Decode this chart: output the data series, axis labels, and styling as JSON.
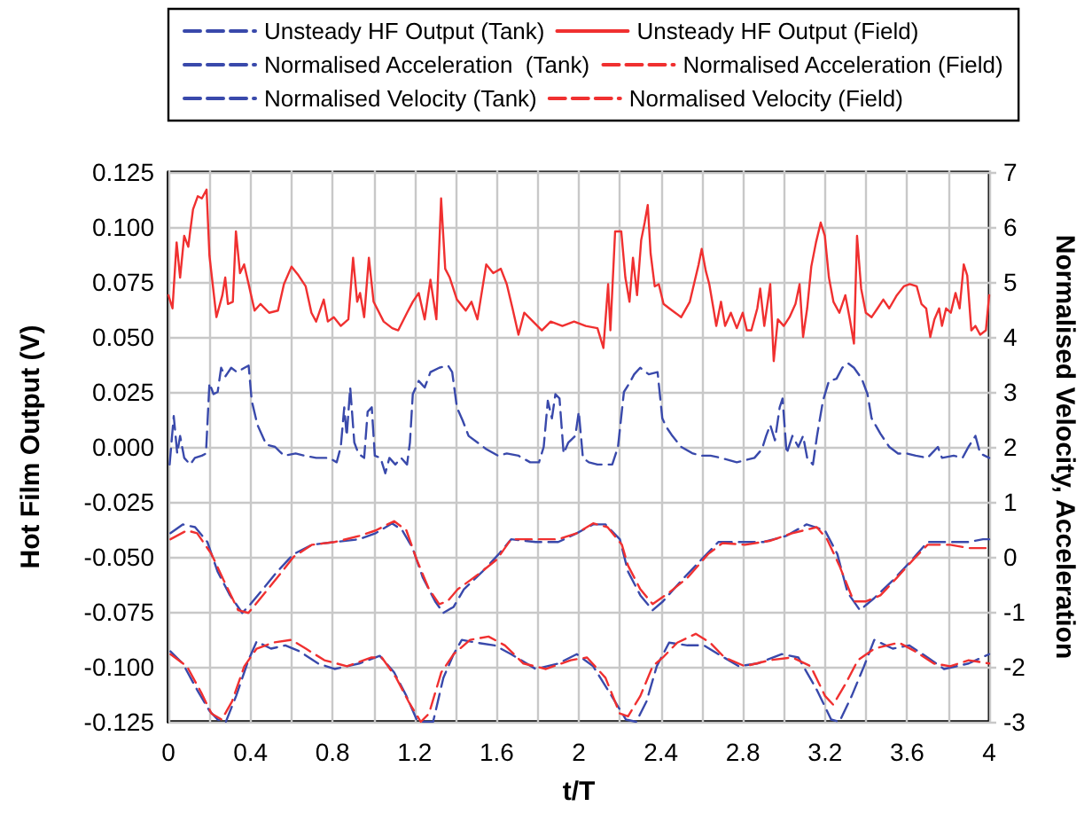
{
  "chart_data": {
    "type": "line",
    "xlabel": "t/T",
    "ylabel": "Hot Film Output (V)",
    "y2label": "Normalised Velocity, Acceleration",
    "xlim": [
      0,
      4
    ],
    "xticks": [
      0,
      {
        "value": 0.2,
        "label": null
      },
      0.4,
      {
        "value": 0.6,
        "label": null
      },
      0.8,
      {
        "value": 1.0,
        "label": null
      },
      1.2,
      {
        "value": 1.4,
        "label": null
      },
      1.6,
      {
        "value": 1.8,
        "label": null
      },
      2,
      {
        "value": 2.2,
        "label": null
      },
      2.4,
      {
        "value": 2.6,
        "label": null
      },
      2.8,
      {
        "value": 3.0,
        "label": null
      },
      3.2,
      {
        "value": 3.4,
        "label": null
      },
      3.6,
      {
        "value": 3.8,
        "label": null
      },
      4
    ],
    "ylim": [
      -0.125,
      0.125
    ],
    "yticks": [
      {
        "value": -0.125,
        "label": "-0.125"
      },
      {
        "value": -0.1,
        "label": "-0.100"
      },
      {
        "value": -0.075,
        "label": "-0.075"
      },
      {
        "value": -0.05,
        "label": "-0.050"
      },
      {
        "value": -0.025,
        "label": "-0.025"
      },
      {
        "value": 0,
        "label": "0.000"
      },
      {
        "value": 0.025,
        "label": "0.025"
      },
      {
        "value": 0.05,
        "label": "0.050"
      },
      {
        "value": 0.075,
        "label": "0.075"
      },
      {
        "value": 0.1,
        "label": "0.100"
      },
      {
        "value": 0.125,
        "label": "0.125"
      }
    ],
    "y2lim": [
      -3,
      7
    ],
    "y2ticks": [
      -3,
      -2,
      -1,
      0,
      1,
      2,
      3,
      4,
      5,
      6,
      7
    ],
    "grid": true,
    "legend": "top",
    "marker": "none",
    "series": [
      {
        "name": "Unsteady HF Output (Tank)",
        "color": "#3949ab",
        "line_style": "dashed",
        "x": [
          0.006,
          0.026,
          0.043,
          0.057,
          0.077,
          0.106,
          0.129,
          0.163,
          0.183,
          0.2,
          0.22,
          0.24,
          0.257,
          0.277,
          0.306,
          0.334,
          0.371,
          0.391,
          0.406,
          0.434,
          0.477,
          0.52,
          0.563,
          0.62,
          0.663,
          0.72,
          0.783,
          0.82,
          0.84,
          0.857,
          0.869,
          0.886,
          0.906,
          0.926,
          0.954,
          0.971,
          0.991,
          1.006,
          1.034,
          1.057,
          1.077,
          1.106,
          1.134,
          1.163,
          1.177,
          1.191,
          1.22,
          1.249,
          1.277,
          1.32,
          1.363,
          1.383,
          1.406,
          1.434,
          1.463,
          1.506,
          1.549,
          1.606,
          1.649,
          1.706,
          1.763,
          1.806,
          1.829,
          1.849,
          1.869,
          1.886,
          1.906,
          1.926,
          1.949,
          1.983,
          2.0,
          2.02,
          2.049,
          2.091,
          2.134,
          2.163,
          2.191,
          2.22,
          2.247,
          2.27,
          2.299,
          2.341,
          2.384,
          2.407,
          2.427,
          2.456,
          2.499,
          2.556,
          2.599,
          2.642,
          2.693,
          2.77,
          2.856,
          2.893,
          2.913,
          2.933,
          2.956,
          2.979,
          2.993,
          3.013,
          3.041,
          3.07,
          3.093,
          3.113,
          3.141,
          3.161,
          3.19,
          3.219,
          3.256,
          3.284,
          3.313,
          3.341,
          3.379,
          3.407,
          3.427,
          3.47,
          3.513,
          3.556,
          3.599,
          3.642,
          3.699,
          3.75,
          3.77,
          3.827,
          3.87,
          3.899,
          3.933,
          3.956,
          4.0
        ],
        "values": [
          -0.008,
          0.014,
          -0.003,
          0.005,
          -0.005,
          -0.008,
          -0.005,
          -0.004,
          -0.003,
          0.029,
          0.024,
          0.025,
          0.036,
          0.032,
          0.036,
          0.034,
          0.036,
          0.037,
          0.021,
          0.01,
          0.001,
          0.0,
          -0.004,
          -0.003,
          -0.004,
          -0.005,
          -0.005,
          -0.007,
          0.0,
          0.018,
          0.005,
          0.027,
          0.002,
          -0.003,
          -0.005,
          0.016,
          0.018,
          -0.004,
          -0.005,
          -0.012,
          -0.005,
          -0.008,
          -0.005,
          -0.008,
          0.002,
          0.024,
          0.03,
          0.027,
          0.034,
          0.036,
          0.037,
          0.034,
          0.018,
          0.012,
          0.005,
          0.002,
          -0.001,
          -0.004,
          -0.003,
          -0.004,
          -0.007,
          -0.007,
          0.0,
          0.021,
          0.013,
          0.024,
          0.022,
          -0.003,
          0.002,
          0.005,
          0.016,
          -0.005,
          -0.007,
          -0.008,
          -0.008,
          -0.008,
          0.0,
          0.025,
          0.029,
          0.033,
          0.036,
          0.033,
          0.034,
          0.013,
          0.009,
          0.005,
          0.0,
          -0.003,
          -0.004,
          -0.004,
          -0.005,
          -0.007,
          -0.005,
          -0.001,
          0.005,
          0.01,
          0.003,
          0.018,
          0.022,
          -0.003,
          0.005,
          0.0,
          0.005,
          -0.005,
          -0.008,
          0.005,
          0.021,
          0.03,
          0.031,
          0.036,
          0.038,
          0.036,
          0.031,
          0.024,
          0.013,
          0.006,
          0.0,
          -0.003,
          -0.003,
          -0.004,
          -0.005,
          0.0,
          -0.005,
          -0.004,
          -0.005,
          0.0,
          0.005,
          -0.003,
          -0.005
        ]
      },
      {
        "name": "Unsteady HF Output (Field)",
        "color": "#f03030",
        "line_style": "solid",
        "x": [
          0,
          0.02,
          0.04,
          0.057,
          0.077,
          0.097,
          0.106,
          0.12,
          0.143,
          0.163,
          0.186,
          0.2,
          0.234,
          0.263,
          0.277,
          0.29,
          0.314,
          0.329,
          0.349,
          0.369,
          0.391,
          0.42,
          0.449,
          0.491,
          0.534,
          0.563,
          0.6,
          0.634,
          0.669,
          0.697,
          0.72,
          0.757,
          0.777,
          0.806,
          0.84,
          0.877,
          0.9,
          0.92,
          0.934,
          0.954,
          0.977,
          1.0,
          1.049,
          1.091,
          1.12,
          1.163,
          1.191,
          1.22,
          1.249,
          1.277,
          1.306,
          1.329,
          1.349,
          1.371,
          1.406,
          1.449,
          1.477,
          1.506,
          1.549,
          1.583,
          1.62,
          1.649,
          1.677,
          1.706,
          1.734,
          1.777,
          1.82,
          1.863,
          1.92,
          1.977,
          2.034,
          2.091,
          2.12,
          2.143,
          2.154,
          2.177,
          2.207,
          2.227,
          2.247,
          2.264,
          2.284,
          2.304,
          2.321,
          2.336,
          2.35,
          2.37,
          2.39,
          2.413,
          2.441,
          2.47,
          2.499,
          2.541,
          2.584,
          2.599,
          2.619,
          2.636,
          2.656,
          2.67,
          2.693,
          2.713,
          2.741,
          2.77,
          2.799,
          2.819,
          2.841,
          2.87,
          2.884,
          2.904,
          2.933,
          2.95,
          2.97,
          2.999,
          3.027,
          3.056,
          3.076,
          3.093,
          3.113,
          3.133,
          3.156,
          3.179,
          3.199,
          3.219,
          3.241,
          3.27,
          3.299,
          3.321,
          3.341,
          3.356,
          3.376,
          3.399,
          3.427,
          3.456,
          3.484,
          3.513,
          3.55,
          3.584,
          3.613,
          3.647,
          3.67,
          3.693,
          3.713,
          3.733,
          3.756,
          3.77,
          3.79,
          3.813,
          3.836,
          3.856,
          3.876,
          3.893,
          3.913,
          3.933,
          3.956,
          3.984,
          4.0
        ],
        "values": [
          0.069,
          0.063,
          0.093,
          0.077,
          0.096,
          0.091,
          0.098,
          0.108,
          0.114,
          0.113,
          0.117,
          0.087,
          0.059,
          0.069,
          0.077,
          0.065,
          0.066,
          0.098,
          0.079,
          0.083,
          0.074,
          0.062,
          0.065,
          0.061,
          0.062,
          0.074,
          0.082,
          0.078,
          0.073,
          0.061,
          0.057,
          0.067,
          0.057,
          0.059,
          0.055,
          0.058,
          0.086,
          0.066,
          0.07,
          0.059,
          0.086,
          0.066,
          0.057,
          0.054,
          0.053,
          0.061,
          0.066,
          0.07,
          0.058,
          0.076,
          0.058,
          0.113,
          0.081,
          0.077,
          0.067,
          0.062,
          0.066,
          0.058,
          0.083,
          0.079,
          0.081,
          0.074,
          0.063,
          0.051,
          0.061,
          0.057,
          0.053,
          0.057,
          0.055,
          0.057,
          0.055,
          0.054,
          0.045,
          0.074,
          0.053,
          0.098,
          0.098,
          0.077,
          0.066,
          0.086,
          0.069,
          0.094,
          0.102,
          0.11,
          0.088,
          0.073,
          0.074,
          0.065,
          0.063,
          0.061,
          0.059,
          0.066,
          0.083,
          0.09,
          0.08,
          0.074,
          0.063,
          0.055,
          0.066,
          0.055,
          0.061,
          0.054,
          0.061,
          0.053,
          0.053,
          0.063,
          0.072,
          0.055,
          0.074,
          0.039,
          0.058,
          0.055,
          0.059,
          0.065,
          0.074,
          0.05,
          0.063,
          0.082,
          0.093,
          0.102,
          0.096,
          0.077,
          0.066,
          0.061,
          0.069,
          0.058,
          0.047,
          0.096,
          0.072,
          0.061,
          0.059,
          0.063,
          0.067,
          0.063,
          0.069,
          0.073,
          0.074,
          0.073,
          0.065,
          0.063,
          0.05,
          0.058,
          0.063,
          0.055,
          0.063,
          0.061,
          0.07,
          0.063,
          0.083,
          0.078,
          0.053,
          0.055,
          0.051,
          0.053,
          0.069
        ]
      },
      {
        "name": "Normalised Acceleration  (Tank)",
        "color": "#3949ab",
        "line_style": "dashed",
        "axis": "y2",
        "x": [
          0.01,
          0.07,
          0.14,
          0.2,
          0.24,
          0.28,
          0.33,
          0.39,
          0.43,
          0.5,
          0.57,
          0.64,
          0.73,
          0.81,
          0.93,
          1.03,
          1.1,
          1.16,
          1.21,
          1.24,
          1.29,
          1.34,
          1.39,
          1.43,
          1.5,
          1.59,
          1.67,
          1.79,
          1.9,
          1.99,
          2.07,
          2.16,
          2.23,
          2.28,
          2.33,
          2.38,
          2.44,
          2.53,
          2.61,
          2.68,
          2.78,
          2.87,
          2.99,
          3.07,
          3.16,
          3.23,
          3.27,
          3.33,
          3.39,
          3.44,
          3.53,
          3.61,
          3.7,
          3.78,
          3.9,
          4.0
        ],
        "values": [
          -1.72,
          -1.94,
          -2.42,
          -2.8,
          -2.96,
          -3.0,
          -2.53,
          -1.88,
          -1.54,
          -1.67,
          -1.61,
          -1.72,
          -1.94,
          -2.04,
          -1.94,
          -1.8,
          -2.1,
          -2.53,
          -2.96,
          -3.0,
          -3.0,
          -2.2,
          -1.77,
          -1.51,
          -1.56,
          -1.61,
          -1.77,
          -2.04,
          -1.94,
          -1.77,
          -1.99,
          -2.53,
          -2.96,
          -3.0,
          -2.63,
          -1.99,
          -1.56,
          -1.61,
          -1.61,
          -1.77,
          -1.99,
          -1.94,
          -1.77,
          -1.83,
          -2.42,
          -2.96,
          -3.0,
          -2.53,
          -1.99,
          -1.51,
          -1.67,
          -1.61,
          -1.83,
          -2.04,
          -1.94,
          -1.77
        ]
      },
      {
        "name": "Normalised Acceleration (Field)",
        "color": "#f03030",
        "line_style": "dashed",
        "axis": "y2",
        "x": [
          0.01,
          0.09,
          0.16,
          0.21,
          0.26,
          0.31,
          0.37,
          0.43,
          0.51,
          0.6,
          0.67,
          0.76,
          0.87,
          0.99,
          1.04,
          1.11,
          1.17,
          1.23,
          1.27,
          1.33,
          1.39,
          1.47,
          1.56,
          1.64,
          1.73,
          1.84,
          1.96,
          2.04,
          2.13,
          2.2,
          2.24,
          2.3,
          2.36,
          2.41,
          2.48,
          2.57,
          2.64,
          2.71,
          2.81,
          2.93,
          3.04,
          3.13,
          3.2,
          3.24,
          3.3,
          3.36,
          3.44,
          3.56,
          3.64,
          3.73,
          3.81,
          3.9,
          4.0
        ],
        "values": [
          -1.77,
          -1.99,
          -2.47,
          -2.85,
          -2.96,
          -2.63,
          -1.99,
          -1.67,
          -1.56,
          -1.51,
          -1.67,
          -1.88,
          -1.99,
          -1.83,
          -1.83,
          -2.2,
          -2.63,
          -3.0,
          -2.85,
          -2.1,
          -1.77,
          -1.51,
          -1.45,
          -1.61,
          -1.94,
          -2.04,
          -1.88,
          -1.83,
          -2.2,
          -2.85,
          -2.9,
          -2.53,
          -1.99,
          -1.83,
          -1.56,
          -1.4,
          -1.56,
          -1.83,
          -1.99,
          -1.88,
          -1.83,
          -1.99,
          -2.53,
          -2.69,
          -2.31,
          -1.88,
          -1.67,
          -1.56,
          -1.72,
          -1.94,
          -1.99,
          -1.88,
          -1.94
        ]
      },
      {
        "name": "Normalised Velocity (Tank)",
        "color": "#3949ab",
        "line_style": "dashed",
        "axis": "y2",
        "x": [
          0.01,
          0.07,
          0.13,
          0.19,
          0.24,
          0.3,
          0.36,
          0.4,
          0.46,
          0.53,
          0.61,
          0.7,
          0.81,
          0.93,
          1.01,
          1.09,
          1.14,
          1.19,
          1.24,
          1.3,
          1.34,
          1.39,
          1.44,
          1.53,
          1.61,
          1.67,
          1.79,
          1.9,
          1.99,
          2.07,
          2.13,
          2.2,
          2.24,
          2.3,
          2.36,
          2.41,
          2.5,
          2.61,
          2.68,
          2.78,
          2.9,
          3.01,
          3.11,
          3.2,
          3.26,
          3.31,
          3.37,
          3.44,
          3.53,
          3.61,
          3.7,
          3.78,
          3.9,
          3.97,
          4.0
        ],
        "values": [
          0.43,
          0.59,
          0.54,
          0.27,
          -0.27,
          -0.7,
          -1.02,
          -0.86,
          -0.59,
          -0.27,
          0.05,
          0.22,
          0.27,
          0.32,
          0.43,
          0.61,
          0.48,
          0.16,
          -0.38,
          -0.81,
          -1.02,
          -0.91,
          -0.59,
          -0.27,
          0.05,
          0.32,
          0.27,
          0.27,
          0.43,
          0.59,
          0.59,
          0.32,
          -0.27,
          -0.7,
          -0.97,
          -0.81,
          -0.43,
          0.0,
          0.27,
          0.27,
          0.27,
          0.38,
          0.59,
          0.48,
          0.05,
          -0.65,
          -0.97,
          -0.75,
          -0.43,
          -0.11,
          0.27,
          0.27,
          0.27,
          0.32,
          0.32
        ]
      },
      {
        "name": "Normalised Velocity (Field)",
        "color": "#f03030",
        "line_style": "dashed",
        "axis": "y2",
        "x": [
          0.01,
          0.09,
          0.14,
          0.21,
          0.27,
          0.34,
          0.39,
          0.46,
          0.53,
          0.61,
          0.7,
          0.81,
          0.93,
          1.01,
          1.1,
          1.16,
          1.21,
          1.27,
          1.32,
          1.36,
          1.41,
          1.51,
          1.6,
          1.67,
          1.79,
          1.9,
          1.99,
          2.07,
          2.14,
          2.21,
          2.24,
          2.3,
          2.36,
          2.44,
          2.53,
          2.63,
          2.7,
          2.81,
          2.93,
          3.04,
          3.16,
          3.21,
          3.27,
          3.34,
          3.4,
          3.47,
          3.55,
          3.63,
          3.7,
          3.81,
          3.9,
          4.0
        ],
        "values": [
          0.32,
          0.48,
          0.43,
          0.05,
          -0.43,
          -0.97,
          -1.02,
          -0.7,
          -0.38,
          0.0,
          0.22,
          0.27,
          0.38,
          0.48,
          0.65,
          0.48,
          -0.05,
          -0.59,
          -0.86,
          -0.81,
          -0.59,
          -0.32,
          -0.05,
          0.32,
          0.32,
          0.32,
          0.43,
          0.61,
          0.54,
          0.22,
          -0.16,
          -0.59,
          -0.86,
          -0.65,
          -0.38,
          0.05,
          0.25,
          0.22,
          0.29,
          0.43,
          0.54,
          0.32,
          -0.16,
          -0.81,
          -0.81,
          -0.7,
          -0.38,
          -0.05,
          0.22,
          0.22,
          0.16,
          0.16
        ]
      }
    ]
  }
}
